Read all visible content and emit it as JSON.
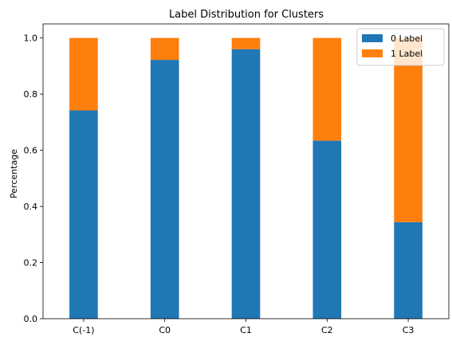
{
  "chart_data": {
    "type": "bar",
    "stacked": true,
    "title": "Label Distribution for Clusters",
    "xlabel": "",
    "ylabel": "Percentage",
    "categories": [
      "C(-1)",
      "C0",
      "C1",
      "C2",
      "C3"
    ],
    "series": [
      {
        "name": "0 Label",
        "color": "#1f77b4",
        "values": [
          0.742,
          0.922,
          0.96,
          0.634,
          0.344
        ]
      },
      {
        "name": "1 Label",
        "color": "#ff7f0e",
        "values": [
          0.258,
          0.078,
          0.04,
          0.366,
          0.656
        ]
      }
    ],
    "ylim": [
      0,
      1.05
    ],
    "yticks": [
      "0.0",
      "0.2",
      "0.4",
      "0.6",
      "0.8",
      "1.0"
    ],
    "grid": false,
    "legend_position": "top-right"
  }
}
